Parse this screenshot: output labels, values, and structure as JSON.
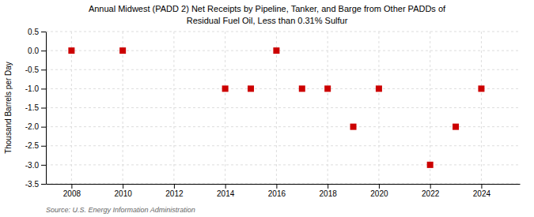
{
  "chart_data": {
    "type": "scatter",
    "title": "Annual Midwest (PADD 2) Net Receipts by Pipeline, Tanker, and Barge from Other PADDs of",
    "subtitle": "Residual Fuel Oil, Less than 0.31% Sulfur",
    "y_label": "Thousand Barrels per Day",
    "source": "Source: U.S. Energy Information Administration",
    "x": [
      2008,
      2010,
      2014,
      2015,
      2016,
      2017,
      2018,
      2019,
      2020,
      2022,
      2023,
      2024
    ],
    "values": [
      0.0,
      0.0,
      -1.0,
      -1.0,
      0.0,
      -1.0,
      -1.0,
      -2.0,
      -1.0,
      -3.0,
      -2.0,
      -1.0
    ],
    "color": "#cc0000",
    "marker": "square",
    "xlim": [
      2007,
      2025.5
    ],
    "ylim": [
      -3.5,
      0.5
    ],
    "xticks": [
      2008,
      2010,
      2012,
      2014,
      2016,
      2018,
      2020,
      2022,
      2024
    ],
    "yticks": [
      0.5,
      {
        "value": 0.0,
        "label": "0.0"
      },
      -0.5,
      {
        "value": -1.0,
        "label": "-1.0"
      },
      -1.5,
      {
        "value": -2.0,
        "label": "-2.0"
      },
      -2.5,
      {
        "value": -3.0,
        "label": "-3.0"
      },
      -3.5
    ],
    "grid": true
  }
}
